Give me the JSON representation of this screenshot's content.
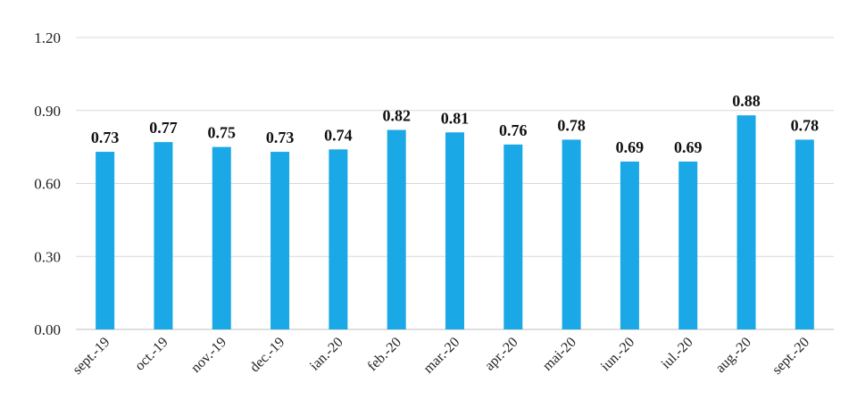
{
  "chart_data": {
    "type": "bar",
    "categories": [
      "sept.-19",
      "oct.-19",
      "nov.-19",
      "dec.-19",
      "ian.-20",
      "feb.-20",
      "mar.-20",
      "apr.-20",
      "mai-20",
      "iun.-20",
      "iul.-20",
      "aug.-20",
      "sept.-20"
    ],
    "values": [
      0.73,
      0.77,
      0.75,
      0.73,
      0.74,
      0.82,
      0.81,
      0.76,
      0.78,
      0.69,
      0.69,
      0.88,
      0.78
    ],
    "value_labels": [
      "0.73",
      "0.77",
      "0.75",
      "0.73",
      "0.74",
      "0.82",
      "0.81",
      "0.76",
      "0.78",
      "0.69",
      "0.69",
      "0.88",
      "0.78"
    ],
    "yticks": [
      "0.00",
      "0.30",
      "0.60",
      "0.90",
      "1.20"
    ],
    "ylim": [
      0,
      1.2
    ],
    "grid": true,
    "legend": "none",
    "bar_color": "#1aa8e6"
  }
}
